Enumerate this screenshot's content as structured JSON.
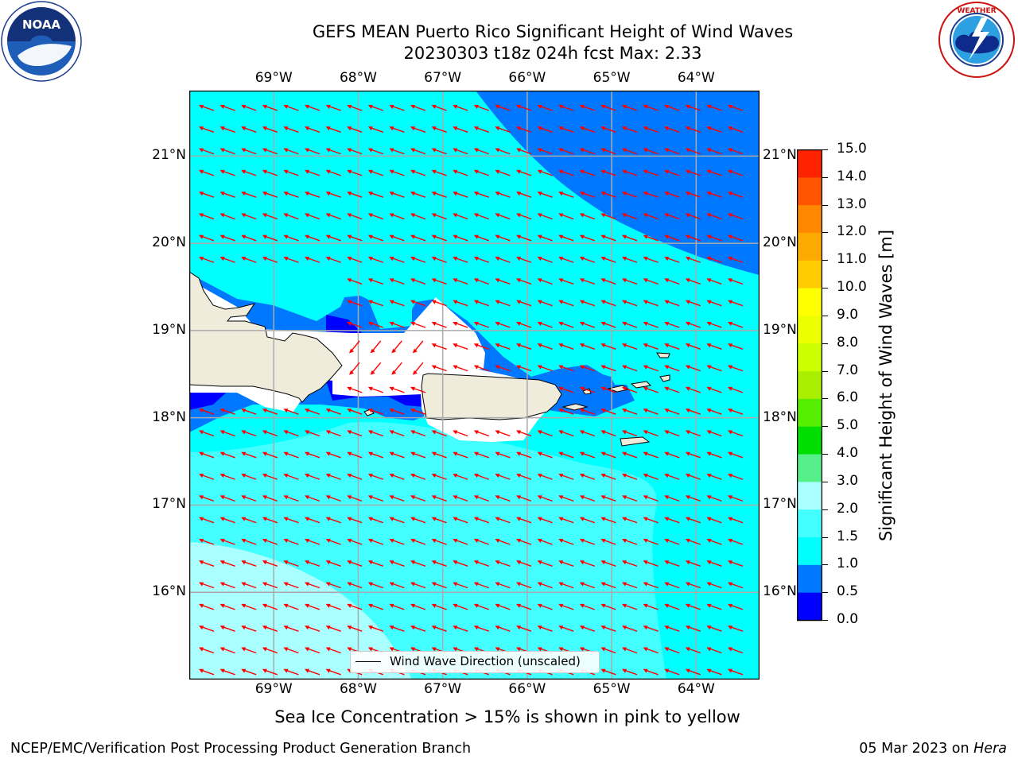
{
  "title": {
    "line1": "GEFS MEAN Puerto Rico Significant Height of Wind Waves",
    "line2": "20230303 t18z 024h fcst   Max: 2.33"
  },
  "logos": {
    "noaa_text": "NOAA",
    "noaa_ring_text": "NATIONAL OCEANIC AND ATMOSPHERIC ADMINISTRATION · U.S. DEPARTMENT OF COMMERCE",
    "nws_ring_text": "NATIONAL WEATHER SERVICE"
  },
  "axes": {
    "lon_ticks": [
      "69°W",
      "68°W",
      "67°W",
      "66°W",
      "65°W",
      "64°W"
    ],
    "lat_ticks": [
      "21°N",
      "20°N",
      "19°N",
      "18°N",
      "17°N",
      "16°N"
    ],
    "lon_range": [
      -70.0,
      -63.25
    ],
    "lat_range": [
      15.0,
      21.75
    ],
    "grid": true
  },
  "map_data": {
    "variable": "Significant Height of Wind Waves",
    "units": "m",
    "max_value": 2.33,
    "wind_wave_direction": "westward, slightly south (easterly trade-wind waves)",
    "land_color": "#efecdc",
    "ocean_colors": {
      "0.0-0.5": "#0000ff",
      "0.5-1.0": "#0077ff",
      "1.0-1.5": "#00ffff",
      "1.5-2.0": "#44ffff",
      "2.0-3.0": "#aaffff"
    },
    "arrow_color": "#ff0000"
  },
  "legend": {
    "label": "Wind Wave Direction (unscaled)",
    "placement": "lower-center"
  },
  "colorbar": {
    "label": "Significant Height of Wind Waves [m]",
    "ticks": [
      "0.0",
      "0.5",
      "1.0",
      "1.5",
      "2.0",
      "3.0",
      "4.0",
      "5.0",
      "6.0",
      "7.0",
      "8.0",
      "9.0",
      "10.0",
      "11.0",
      "12.0",
      "13.0",
      "14.0",
      "15.0"
    ],
    "colors": [
      "#0000ff",
      "#0077ff",
      "#00ffff",
      "#44ffff",
      "#aaffff",
      "#55f08a",
      "#00dd00",
      "#55ee00",
      "#aaee00",
      "#ccff00",
      "#eeff00",
      "#ffff00",
      "#ffcc00",
      "#ffaa00",
      "#ff8800",
      "#ff5500",
      "#ff2200"
    ]
  },
  "caption": "Sea Ice Concentration > 15% is shown in pink to yellow",
  "footer": {
    "left": "NCEP/EMC/Verification Post Processing Product Generation Branch",
    "date": "05 Mar 2023 on ",
    "machine": "Hera"
  }
}
